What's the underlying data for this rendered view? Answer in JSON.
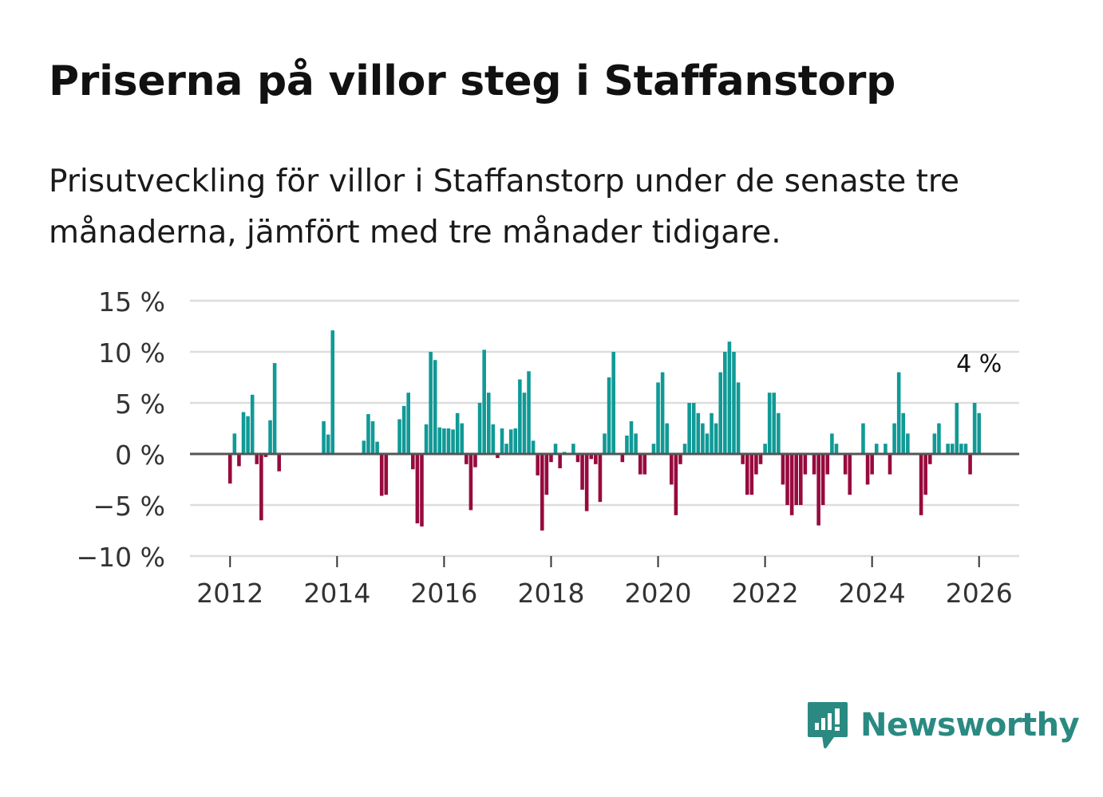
{
  "title": "Priserna på villor steg i Staffanstorp",
  "subtitle": "Prisutveckling för villor i Staffanstorp under de senaste tre månaderna, jämfört med tre månader tidigare.",
  "brand": {
    "name": "Newsworthy",
    "icon": "newsworthy-logo-icon",
    "color": "#2a8a82"
  },
  "colors": {
    "positive": "#109a96",
    "negative": "#970a3d",
    "grid": "#dddddd",
    "zero": "#555555"
  },
  "chart_data": {
    "type": "bar",
    "title": "Priserna på villor steg i Staffanstorp",
    "xlabel": "",
    "ylabel": "",
    "ylim": [
      -10,
      15
    ],
    "yticks": [
      15,
      10,
      5,
      0,
      -5,
      -10
    ],
    "ytick_labels": [
      "15 %",
      "10 %",
      "5 %",
      "0 %",
      "−5 %",
      "−10 %"
    ],
    "xticks": [
      2012,
      2014,
      2016,
      2018,
      2020,
      2022,
      2024,
      2026
    ],
    "xtick_labels": [
      "2012",
      "2014",
      "2016",
      "2018",
      "2020",
      "2022",
      "2024",
      "2026"
    ],
    "xlim": [
      2011.25,
      2026.75
    ],
    "grid": true,
    "annotation": {
      "label": "4 %",
      "x": 2026.0,
      "value": 4
    },
    "x": [
      2012.0,
      2012.0833,
      2012.1667,
      2012.25,
      2012.3333,
      2012.4167,
      2012.5,
      2012.5833,
      2012.6667,
      2012.75,
      2012.8333,
      2012.9167,
      2013.75,
      2013.8333,
      2013.9167,
      2014.5,
      2014.5833,
      2014.6667,
      2014.75,
      2014.8333,
      2014.9167,
      2015.1667,
      2015.25,
      2015.3333,
      2015.4167,
      2015.5,
      2015.5833,
      2015.6667,
      2015.75,
      2015.8333,
      2015.9167,
      2016.0,
      2016.0833,
      2016.1667,
      2016.25,
      2016.3333,
      2016.4167,
      2016.5,
      2016.5833,
      2016.6667,
      2016.75,
      2016.8333,
      2016.9167,
      2017.0,
      2017.0833,
      2017.1667,
      2017.25,
      2017.3333,
      2017.4167,
      2017.5,
      2017.5833,
      2017.6667,
      2017.75,
      2017.8333,
      2017.9167,
      2018.0,
      2018.0833,
      2018.1667,
      2018.25,
      2018.3333,
      2018.4167,
      2018.5,
      2018.5833,
      2018.6667,
      2018.75,
      2018.8333,
      2018.9167,
      2019.0,
      2019.0833,
      2019.1667,
      2019.25,
      2019.3333,
      2019.4167,
      2019.5,
      2019.5833,
      2019.6667,
      2019.75,
      2019.8333,
      2019.9167,
      2020.0,
      2020.0833,
      2020.1667,
      2020.25,
      2020.3333,
      2020.4167,
      2020.5,
      2020.5833,
      2020.6667,
      2020.75,
      2020.8333,
      2020.9167,
      2021.0,
      2021.0833,
      2021.1667,
      2021.25,
      2021.3333,
      2021.4167,
      2021.5,
      2021.5833,
      2021.6667,
      2021.75,
      2021.8333,
      2021.9167,
      2022.0,
      2022.0833,
      2022.1667,
      2022.25,
      2022.3333,
      2022.4167,
      2022.5,
      2022.5833,
      2022.6667,
      2022.75,
      2022.8333,
      2022.9167,
      2023.0,
      2023.0833,
      2023.1667,
      2023.25,
      2023.3333,
      2023.4167,
      2023.5,
      2023.5833,
      2023.6667,
      2023.75,
      2023.8333,
      2023.9167,
      2024.0,
      2024.0833,
      2024.1667,
      2024.25,
      2024.3333,
      2024.4167,
      2024.5,
      2024.5833,
      2024.6667,
      2024.75,
      2024.8333,
      2024.9167,
      2025.0,
      2025.0833,
      2025.1667,
      2025.25,
      2025.3333,
      2025.4167,
      2025.5,
      2025.5833,
      2025.6667,
      2025.75,
      2025.8333,
      2025.9167,
      2026.0
    ],
    "values": [
      -2.9,
      2.0,
      -1.2,
      4.1,
      3.7,
      5.8,
      -1.0,
      -6.5,
      -0.3,
      3.3,
      8.9,
      -1.7,
      3.2,
      1.9,
      12.1,
      1.3,
      3.9,
      3.2,
      1.2,
      -4.1,
      -4.0,
      3.4,
      4.7,
      6.0,
      -1.5,
      -6.8,
      -7.1,
      2.9,
      10.0,
      9.2,
      2.6,
      2.5,
      2.5,
      2.4,
      4.0,
      3.0,
      -1.0,
      -5.5,
      -1.3,
      5.0,
      10.2,
      6.0,
      2.9,
      -0.4,
      2.5,
      1.0,
      2.4,
      2.5,
      7.3,
      6.0,
      8.1,
      1.3,
      -2.1,
      -7.5,
      -4.0,
      -0.8,
      1.0,
      -1.4,
      0.2,
      0.1,
      1.0,
      -0.8,
      -3.5,
      -5.6,
      -0.5,
      -1.0,
      -4.7,
      2.0,
      7.5,
      10.0,
      0.1,
      -0.8,
      1.8,
      3.2,
      2.0,
      -2.0,
      -2.0,
      0.1,
      1.0,
      7.0,
      8.0,
      3.0,
      -3.0,
      -6.0,
      -1.0,
      1.0,
      5.0,
      5.0,
      4.0,
      3.0,
      2.0,
      4.0,
      3.0,
      8.0,
      10.0,
      11.0,
      10.0,
      7.0,
      -1.0,
      -4.0,
      -4.0,
      -2.0,
      -1.0,
      1.0,
      6.0,
      6.0,
      4.0,
      -3.0,
      -5.0,
      -6.0,
      -5.0,
      -5.0,
      -2.0,
      0.1,
      -2.0,
      -7.0,
      -5.0,
      -2.0,
      2.0,
      1.0,
      0.1,
      -2.0,
      -4.0,
      0.1,
      0.1,
      3.0,
      -3.0,
      -2.0,
      1.0,
      0.1,
      1.0,
      -2.0,
      3.0,
      8.0,
      4.0,
      2.0,
      0.1,
      0.1,
      -6.0,
      -4.0,
      -1.0,
      2.0,
      3.0,
      0.1,
      1.0,
      1.0,
      5.0,
      1.0,
      1.0,
      -2.0,
      5.0,
      4.0
    ]
  }
}
